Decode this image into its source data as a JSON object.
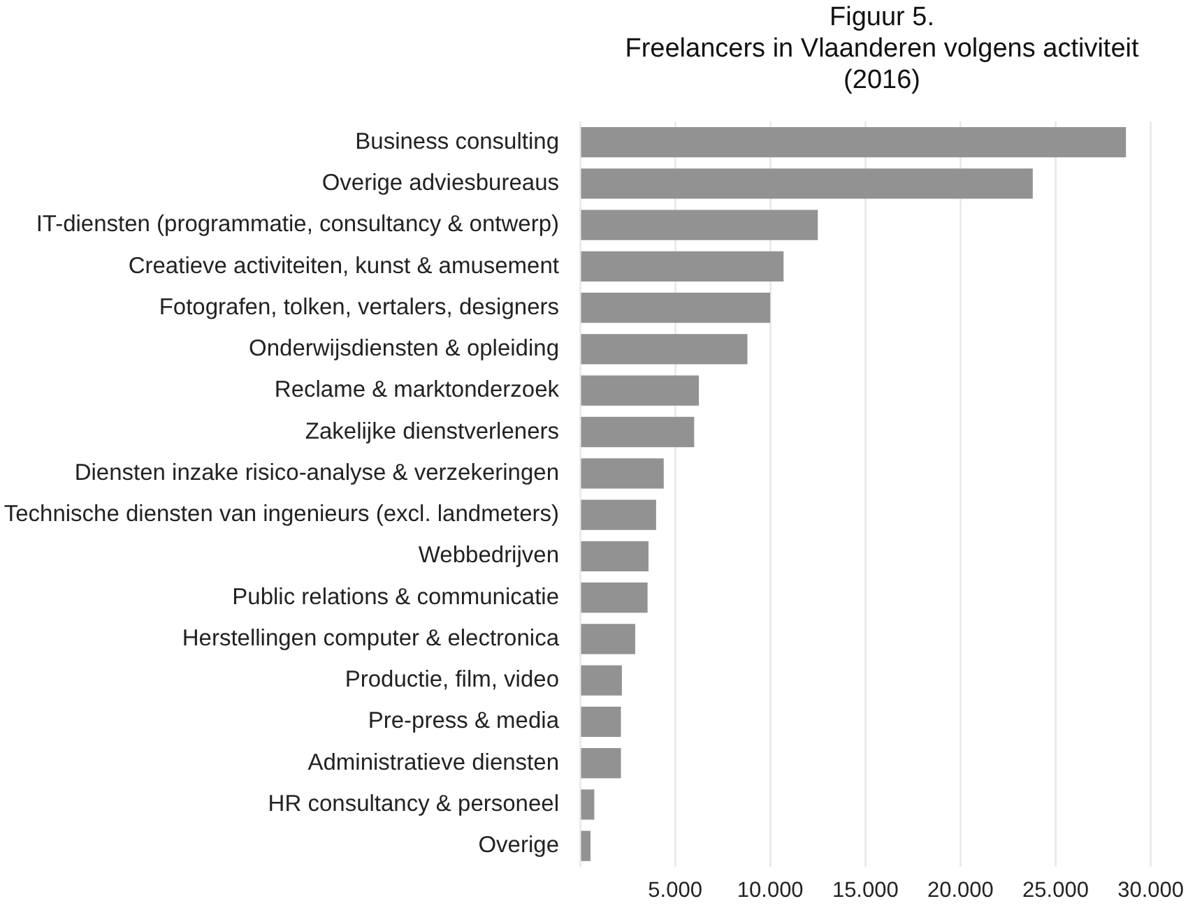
{
  "chart_data": {
    "type": "bar",
    "orientation": "horizontal",
    "title": "Figuur 5.\nFreelancers in Vlaanderen volgens activiteit\n(2016)",
    "categories": [
      "Business consulting",
      "Overige adviesbureaus",
      "IT-diensten (programmatie, consultancy & ontwerp)",
      "Creatieve activiteiten, kunst & amusement",
      "Fotografen, tolken, vertalers, designers",
      "Onderwijsdiensten & opleiding",
      "Reclame & marktonderzoek",
      "Zakelijke dienstverleners",
      "Diensten inzake risico-analyse & verzekeringen",
      "Technische diensten van ingenieurs (excl. landmeters)",
      "Webbedrijven",
      "Public relations & communicatie",
      "Herstellingen computer & electronica",
      "Productie, film, video",
      "Pre-press & media",
      "Administratieve diensten",
      "HR consultancy & personeel",
      "Overige"
    ],
    "values": [
      28700,
      23800,
      12500,
      10700,
      10000,
      8800,
      6250,
      6000,
      4400,
      4000,
      3600,
      3550,
      2900,
      2200,
      2150,
      2150,
      750,
      550
    ],
    "color": "#929292",
    "xlim": [
      0,
      30000
    ],
    "xticks": [
      {
        "value": 0,
        "label": null
      },
      {
        "value": 5000,
        "label": "5.000"
      },
      {
        "value": 10000,
        "label": "10.000"
      },
      {
        "value": 15000,
        "label": "15.000"
      },
      {
        "value": 20000,
        "label": "20.000"
      },
      {
        "value": 25000,
        "label": "25.000"
      },
      {
        "value": 30000,
        "label": "30.000"
      }
    ],
    "grid": "x"
  }
}
